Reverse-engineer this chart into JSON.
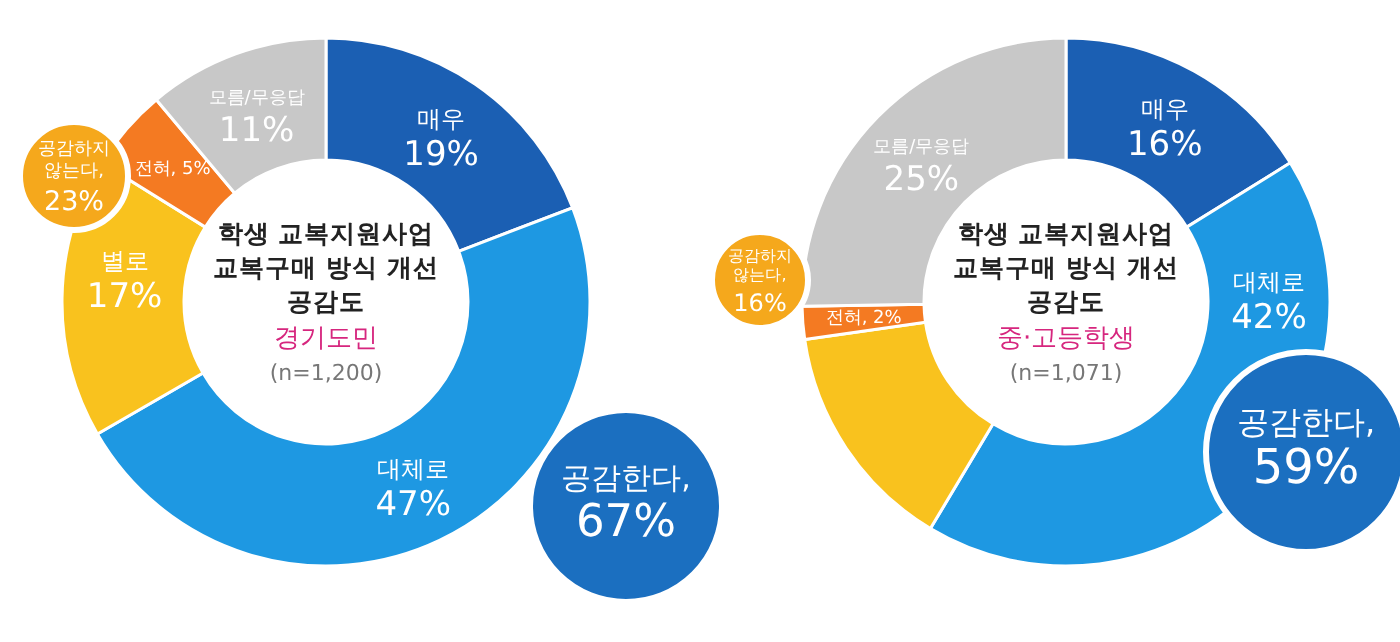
{
  "chart_data": [
    {
      "type": "donut",
      "title": "학생 교복지원사업\n교복구매 방식 개선\n공감도",
      "subtitle": "경기도민",
      "annotations": [
        "(n=1,200)",
        "공감한다, 67%",
        "공감하지 않는다, 23%"
      ],
      "categories": [
        "매우",
        "대체로",
        "별로",
        "전혀",
        "모름/무응답"
      ],
      "values": [
        19,
        47,
        17,
        5,
        11
      ],
      "value_labels": [
        "19%",
        "47%",
        "17%",
        "5%",
        "11%"
      ],
      "colors": [
        "#1b5fb3",
        "#1e98e2",
        "#f9c21e",
        "#f47a22",
        "#c8c8c8"
      ]
    },
    {
      "type": "donut",
      "title": "학생 교복지원사업\n교복구매 방식 개선\n공감도",
      "subtitle": "중·고등학생",
      "annotations": [
        "(n=1,071)",
        "공감한다, 59%",
        "공감하지 않는다, 16%"
      ],
      "categories": [
        "매우",
        "대체로",
        null,
        "전혀",
        "모름/무응답"
      ],
      "values": [
        16,
        42,
        14,
        2,
        25
      ],
      "value_labels": [
        "16%",
        "42%",
        null,
        "2%",
        "25%"
      ],
      "colors": [
        "#1b5fb3",
        "#1e98e2",
        "#f9c21e",
        "#f47a22",
        "#c8c8c8"
      ]
    }
  ]
}
